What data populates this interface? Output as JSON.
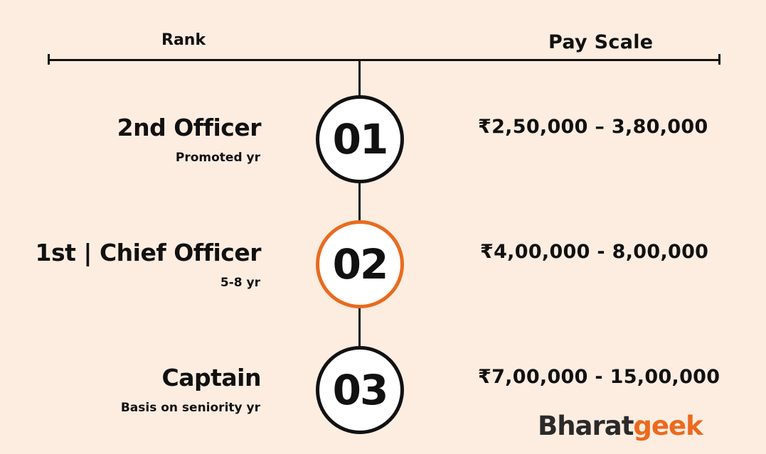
{
  "header": {
    "rank": "Rank",
    "pay_scale": "Pay Scale"
  },
  "rows": [
    {
      "number": "01",
      "title": "2nd Officer",
      "subtitle": "Promoted yr",
      "pay": "₹2,50,000 – 3,80,000",
      "highlighted": false
    },
    {
      "number": "02",
      "title": "1st | Chief Officer",
      "subtitle": "5-8 yr",
      "pay": "₹4,00,000 - 8,00,000",
      "highlighted": true
    },
    {
      "number": "03",
      "title": "Captain",
      "subtitle": "Basis on seniority yr",
      "pay": "₹7,00,000 - 15,00,000",
      "highlighted": false
    }
  ],
  "logo": {
    "part1": "Bharat",
    "part2": "geek"
  },
  "colors": {
    "background": "#fdede1",
    "accent": "#ea6a1f",
    "ink": "#111111"
  }
}
